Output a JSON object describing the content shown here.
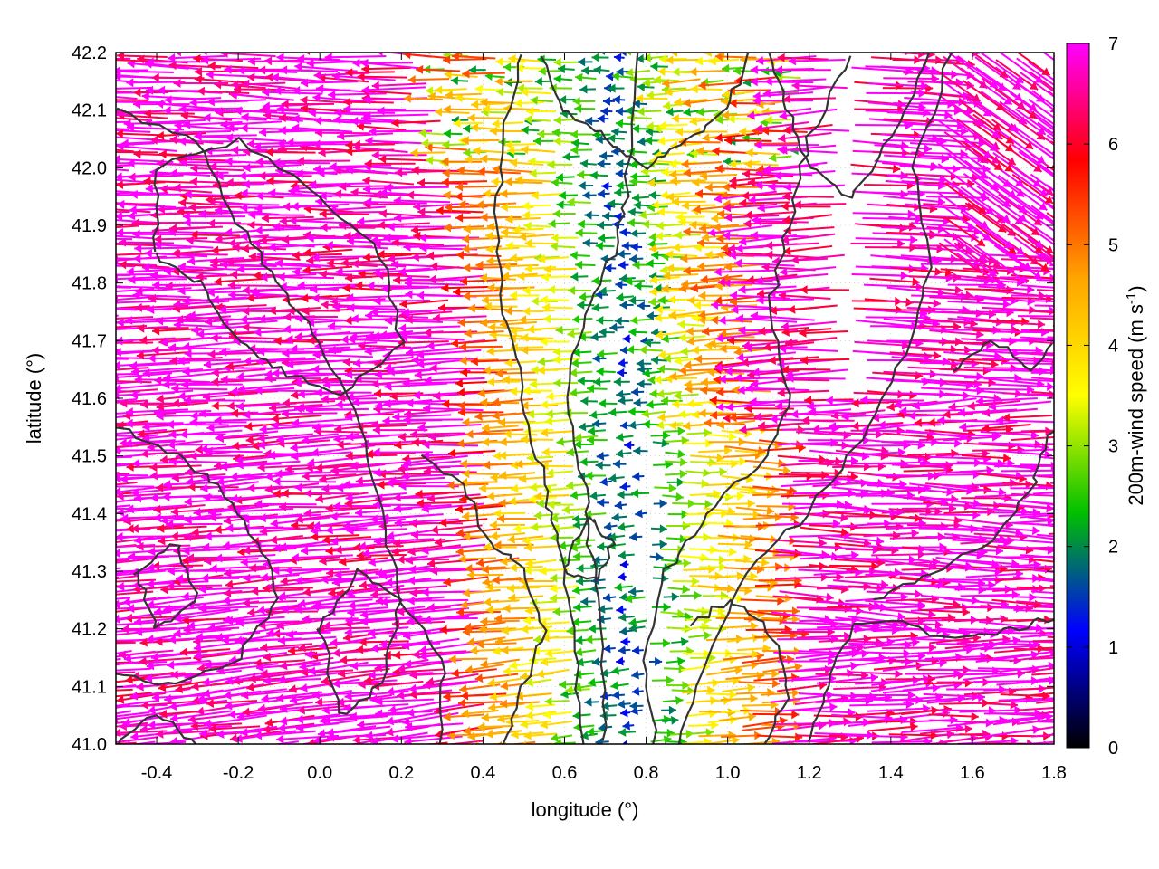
{
  "chart_data": {
    "type": "vector-field",
    "xlabel": "longitude (°)",
    "ylabel": "latitude (°)",
    "xlim": [
      -0.5,
      1.8
    ],
    "ylim": [
      41.0,
      42.2
    ],
    "xticks": [
      -0.4,
      -0.2,
      0.0,
      0.2,
      0.4,
      0.6,
      0.8,
      1.0,
      1.2,
      1.4,
      1.6,
      1.8
    ],
    "yticks": [
      41.0,
      41.1,
      41.2,
      41.3,
      41.4,
      41.5,
      41.6,
      41.7,
      41.8,
      41.9,
      42.0,
      42.1,
      42.2
    ],
    "xtick_labels": [
      "-0.4",
      "-0.2",
      "0.0",
      "0.2",
      "0.4",
      "0.6",
      "0.8",
      "1.0",
      "1.2",
      "1.4",
      "1.6",
      "1.8"
    ],
    "ytick_labels": [
      "41.0",
      "41.1",
      "41.2",
      "41.3",
      "41.4",
      "41.5",
      "41.6",
      "41.7",
      "41.8",
      "41.9",
      "42.0",
      "42.1",
      "42.2"
    ],
    "colorbar": {
      "label_main": "200m-wind speed (m s",
      "label_sup": "-1",
      "label_end": ")",
      "min": 0,
      "max": 7,
      "ticks": [
        "0",
        "1",
        "2",
        "3",
        "4",
        "5",
        "6",
        "7"
      ],
      "stops": [
        "#000000",
        "#0000ff",
        "#00c000",
        "#ffff00",
        "#ffa500",
        "#ff0000",
        "#ff00ff"
      ]
    },
    "grid": "dotted-inner",
    "contour_color": "#333333",
    "notes_visual": "Wind vectors colored by speed; magenta dominant on west and east flanks flowing westward, weak winds (green/yellow/blue) along central valley around lon 0.6-0.9; dark contour lines of terrain."
  }
}
